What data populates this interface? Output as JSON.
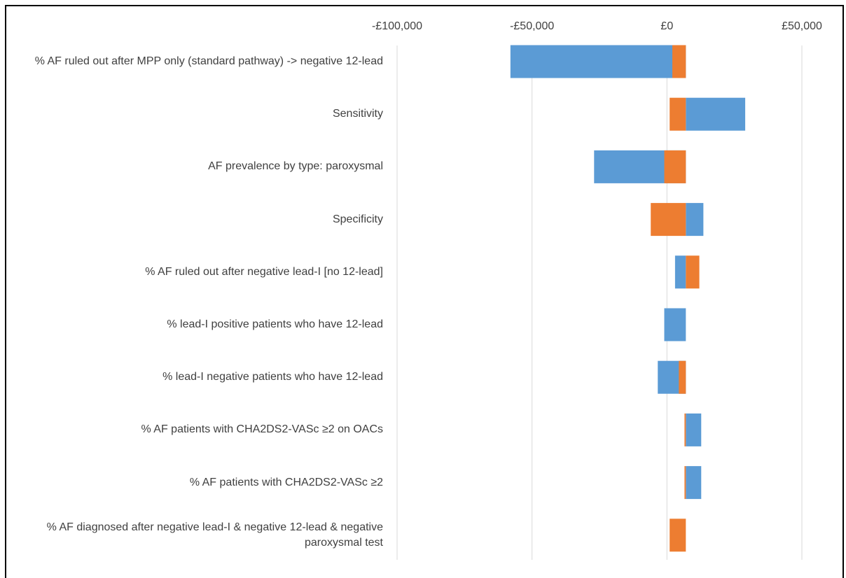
{
  "chart_data": {
    "type": "tornado",
    "categories": [
      "% AF ruled out after MPP only (standard pathway) -> negative 12-lead",
      "Sensitivity",
      "AF prevalence by type: paroxysmal",
      "Specificity",
      "% AF ruled out after negative lead-I  [no 12-lead]",
      "% lead-I positive patients who have 12-lead",
      "% lead-I negative patients who have 12-lead",
      "% AF patients with CHA2DS2-VASc ≥2 on OACs",
      "% AF patients with CHA2DS2-VASc ≥2",
      "% AF diagnosed after negative lead-I & negative 12-lead & negative paroxysmal test"
    ],
    "base": 7000,
    "series": [
      {
        "color": "#5b9bd5",
        "values": [
          -58000,
          29000,
          -27000,
          13500,
          3000,
          -1000,
          -3400,
          12700,
          12700,
          7000
        ]
      },
      {
        "color": "#ed7d31",
        "values": [
          2000,
          1000,
          -1000,
          -6000,
          12000,
          7000,
          4400,
          6500,
          6500,
          1000
        ]
      }
    ],
    "xlim": [
      -100000,
      50000
    ],
    "xticks": [
      {
        "value": -100000,
        "label": "-£100,000"
      },
      {
        "value": -50000,
        "label": "-£50,000"
      },
      {
        "value": 0,
        "label": "£0"
      },
      {
        "value": 50000,
        "label": "£50,000"
      }
    ],
    "grid": true
  }
}
